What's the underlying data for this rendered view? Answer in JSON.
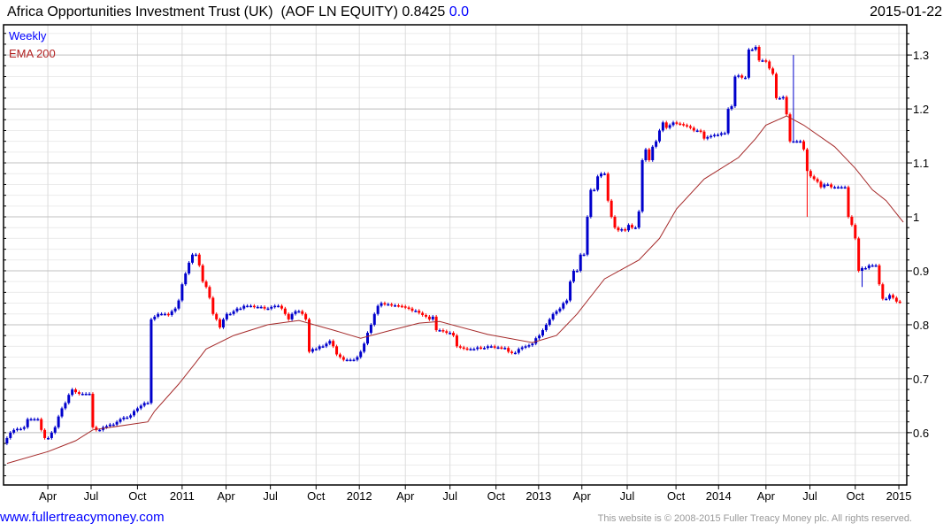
{
  "header": {
    "title": "Africa Opportunities Investment Trust (UK)  (AOF LN EQUITY) 0.8425",
    "change": "0.0",
    "date": "2015-01-22"
  },
  "footer": {
    "link": "www.fullertreacymoney.com",
    "copyright": "This website is © 2008-2015 Fuller Treacy Money plc. All rights reserved."
  },
  "colors": {
    "up": "#0000cc",
    "down": "#ff0000",
    "ema": "#a52a2a",
    "weekly_label": "#0000ff",
    "ema_label": "#b22222"
  },
  "chart_data": {
    "type": "candlestick",
    "title": "Africa Opportunities Investment Trust (UK) (AOF LN EQUITY)",
    "legend": [
      "Weekly",
      "EMA 200"
    ],
    "legend_placement": "top-left",
    "ylim": [
      0.503,
      1.356
    ],
    "y_ticks": [
      0.6,
      0.7,
      0.8,
      0.9,
      1,
      1.1,
      1.2,
      1.3
    ],
    "y_tick_labels": [
      "0.6",
      "0.7",
      "0.8",
      "0.9",
      "1",
      "1.1",
      "1.2",
      "1.3"
    ],
    "x_unit": "weeks since first week of 2010",
    "xlim": [
      -1,
      262
    ],
    "x_ticks": [
      {
        "week": 11.9,
        "label": "Apr"
      },
      {
        "week": 24.5,
        "label": "Jul"
      },
      {
        "week": 38,
        "label": "Oct"
      },
      {
        "week": 51,
        "label": "2011"
      },
      {
        "week": 63.8,
        "label": "Apr"
      },
      {
        "week": 76.7,
        "label": "Jul"
      },
      {
        "week": 90,
        "label": "Oct"
      },
      {
        "week": 102.6,
        "label": "2012"
      },
      {
        "week": 116,
        "label": "Apr"
      },
      {
        "week": 129,
        "label": "Jul"
      },
      {
        "week": 142.4,
        "label": "Oct"
      },
      {
        "week": 154.8,
        "label": "2013"
      },
      {
        "week": 167.4,
        "label": "Apr"
      },
      {
        "week": 180.6,
        "label": "Jul"
      },
      {
        "week": 194.8,
        "label": "Oct"
      },
      {
        "week": 207.2,
        "label": "2014"
      },
      {
        "week": 221,
        "label": "Apr"
      },
      {
        "week": 233.8,
        "label": "Jul"
      },
      {
        "week": 247,
        "label": "Oct"
      },
      {
        "week": 259.7,
        "label": "2015"
      }
    ],
    "weekly_close": [
      0.59,
      0.6,
      0.605,
      0.607,
      0.607,
      0.61,
      0.625,
      0.625,
      0.625,
      0.625,
      0.605,
      0.59,
      0.59,
      0.6,
      0.61,
      0.63,
      0.645,
      0.655,
      0.67,
      0.68,
      0.675,
      0.672,
      0.672,
      0.672,
      0.672,
      0.61,
      0.605,
      0.605,
      0.61,
      0.612,
      0.615,
      0.615,
      0.62,
      0.625,
      0.628,
      0.628,
      0.632,
      0.64,
      0.645,
      0.65,
      0.655,
      0.655,
      0.81,
      0.815,
      0.82,
      0.82,
      0.82,
      0.818,
      0.825,
      0.83,
      0.845,
      0.875,
      0.895,
      0.915,
      0.93,
      0.93,
      0.91,
      0.88,
      0.87,
      0.85,
      0.82,
      0.81,
      0.795,
      0.81,
      0.82,
      0.82,
      0.825,
      0.83,
      0.83,
      0.835,
      0.835,
      0.835,
      0.833,
      0.833,
      0.833,
      0.83,
      0.83,
      0.833,
      0.835,
      0.835,
      0.83,
      0.82,
      0.81,
      0.82,
      0.825,
      0.825,
      0.82,
      0.81,
      0.75,
      0.755,
      0.755,
      0.76,
      0.76,
      0.765,
      0.77,
      0.76,
      0.745,
      0.74,
      0.735,
      0.735,
      0.735,
      0.735,
      0.74,
      0.75,
      0.765,
      0.785,
      0.8,
      0.82,
      0.835,
      0.84,
      0.838,
      0.838,
      0.836,
      0.836,
      0.835,
      0.834,
      0.832,
      0.83,
      0.826,
      0.826,
      0.822,
      0.818,
      0.815,
      0.81,
      0.815,
      0.79,
      0.79,
      0.788,
      0.785,
      0.785,
      0.78,
      0.76,
      0.758,
      0.756,
      0.755,
      0.755,
      0.755,
      0.758,
      0.757,
      0.757,
      0.76,
      0.76,
      0.758,
      0.758,
      0.757,
      0.757,
      0.75,
      0.748,
      0.748,
      0.755,
      0.758,
      0.76,
      0.762,
      0.765,
      0.775,
      0.78,
      0.79,
      0.8,
      0.81,
      0.82,
      0.825,
      0.83,
      0.84,
      0.845,
      0.88,
      0.9,
      0.9,
      0.93,
      0.93,
      1.0,
      1.05,
      1.05,
      1.075,
      1.08,
      1.08,
      1.03,
      1.0,
      0.98,
      0.975,
      0.977,
      0.975,
      0.985,
      0.98,
      0.98,
      1.01,
      1.105,
      1.125,
      1.105,
      1.13,
      1.14,
      1.16,
      1.175,
      1.165,
      1.17,
      1.175,
      1.173,
      1.172,
      1.17,
      1.168,
      1.165,
      1.16,
      1.16,
      1.158,
      1.145,
      1.148,
      1.15,
      1.152,
      1.152,
      1.155,
      1.155,
      1.2,
      1.205,
      1.26,
      1.262,
      1.258,
      1.258,
      1.31,
      1.31,
      1.315,
      1.29,
      1.29,
      1.288,
      1.275,
      1.265,
      1.22,
      1.22,
      1.222,
      1.19,
      1.14,
      1.14,
      1.14,
      1.14,
      1.125,
      1.085,
      1.075,
      1.07,
      1.065,
      1.055,
      1.06,
      1.06,
      1.055,
      1.055,
      1.055,
      1.055,
      1.055,
      1.0,
      0.985,
      0.96,
      0.9,
      0.905,
      0.905,
      0.91,
      0.91,
      0.91,
      0.875,
      0.848,
      0.848,
      0.855,
      0.85,
      0.843,
      0.842
    ],
    "ema_200": [
      {
        "week": 0,
        "value": 0.543
      },
      {
        "week": 12,
        "value": 0.565
      },
      {
        "week": 20,
        "value": 0.585
      },
      {
        "week": 25,
        "value": 0.605
      },
      {
        "week": 41,
        "value": 0.62
      },
      {
        "week": 43,
        "value": 0.64
      },
      {
        "week": 50,
        "value": 0.69
      },
      {
        "week": 55,
        "value": 0.73
      },
      {
        "week": 58,
        "value": 0.755
      },
      {
        "week": 66,
        "value": 0.78
      },
      {
        "week": 76,
        "value": 0.8
      },
      {
        "week": 85,
        "value": 0.808
      },
      {
        "week": 95,
        "value": 0.79
      },
      {
        "week": 103,
        "value": 0.775
      },
      {
        "week": 112,
        "value": 0.79
      },
      {
        "week": 120,
        "value": 0.803
      },
      {
        "week": 126,
        "value": 0.806
      },
      {
        "week": 140,
        "value": 0.782
      },
      {
        "week": 153,
        "value": 0.767
      },
      {
        "week": 160,
        "value": 0.78
      },
      {
        "week": 166,
        "value": 0.82
      },
      {
        "week": 174,
        "value": 0.885
      },
      {
        "week": 184,
        "value": 0.92
      },
      {
        "week": 190,
        "value": 0.96
      },
      {
        "week": 195,
        "value": 1.015
      },
      {
        "week": 203,
        "value": 1.07
      },
      {
        "week": 213,
        "value": 1.11
      },
      {
        "week": 218,
        "value": 1.145
      },
      {
        "week": 221,
        "value": 1.17
      },
      {
        "week": 227,
        "value": 1.187
      },
      {
        "week": 232,
        "value": 1.17
      },
      {
        "week": 241,
        "value": 1.13
      },
      {
        "week": 247,
        "value": 1.09
      },
      {
        "week": 252,
        "value": 1.05
      },
      {
        "week": 256,
        "value": 1.03
      },
      {
        "week": 261,
        "value": 0.99
      }
    ],
    "wick_extremes": [
      {
        "week": 229,
        "high": 1.3
      },
      {
        "week": 233,
        "low": 1.0
      },
      {
        "week": 249,
        "low": 0.87
      }
    ]
  }
}
